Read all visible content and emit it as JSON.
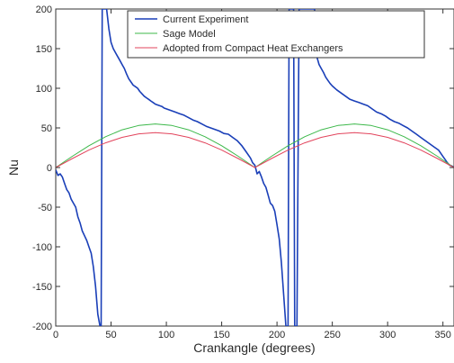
{
  "chart_data": {
    "type": "line",
    "title": "",
    "xlabel": "Crankangle (degrees)",
    "ylabel": "Nu",
    "xlim": [
      0,
      360
    ],
    "ylim": [
      -200,
      200
    ],
    "x_ticks": [
      0,
      50,
      100,
      150,
      200,
      250,
      300,
      350
    ],
    "y_ticks": [
      200,
      150,
      100,
      50,
      0,
      -50,
      -100,
      -150,
      -200
    ],
    "grid": false,
    "legend_position": "top",
    "series": [
      {
        "name": "Current Experiment",
        "color": "#1a3fb8",
        "x": [
          0,
          2,
          4,
          6,
          8,
          10,
          12,
          14,
          16,
          18,
          20,
          22,
          24,
          26,
          28,
          30,
          32,
          34,
          36,
          38,
          40,
          41,
          42,
          43,
          44,
          45,
          46,
          48,
          50,
          52,
          54,
          56,
          58,
          60,
          62,
          64,
          66,
          68,
          70,
          72,
          74,
          76,
          78,
          80,
          82,
          84,
          86,
          88,
          90,
          92,
          94,
          96,
          98,
          100,
          104,
          108,
          112,
          116,
          120,
          124,
          128,
          132,
          136,
          140,
          144,
          148,
          152,
          156,
          160,
          164,
          168,
          172,
          176,
          178,
          180,
          182,
          184,
          186,
          188,
          190,
          192,
          194,
          196,
          198,
          200,
          202,
          204,
          206,
          208,
          210,
          211,
          212,
          213,
          214,
          215,
          216,
          217,
          218,
          220,
          222,
          224,
          226,
          228,
          230,
          232,
          234,
          236,
          238,
          240,
          242,
          244,
          246,
          248,
          250,
          254,
          258,
          262,
          266,
          270,
          274,
          278,
          282,
          286,
          290,
          294,
          298,
          302,
          306,
          310,
          314,
          318,
          322,
          326,
          330,
          334,
          338,
          342,
          346,
          350,
          352,
          354,
          356,
          358,
          360
        ],
        "y": [
          -3,
          -10,
          -8,
          -12,
          -20,
          -28,
          -32,
          -40,
          -45,
          -50,
          -62,
          -70,
          -80,
          -86,
          -92,
          -100,
          -108,
          -125,
          -150,
          -185,
          -200,
          -200,
          200,
          200,
          200,
          200,
          200,
          175,
          158,
          150,
          145,
          140,
          135,
          130,
          125,
          118,
          112,
          108,
          104,
          102,
          100,
          96,
          93,
          90,
          88,
          86,
          84,
          82,
          80,
          79,
          78,
          77,
          75,
          74,
          72,
          70,
          68,
          66,
          63,
          60,
          58,
          55,
          52,
          50,
          48,
          46,
          43,
          42,
          38,
          34,
          28,
          20,
          12,
          6,
          3,
          -8,
          -5,
          -12,
          -20,
          -25,
          -35,
          -45,
          -48,
          -55,
          -72,
          -90,
          -120,
          -160,
          -200,
          -200,
          200,
          200,
          200,
          200,
          200,
          -200,
          -200,
          -200,
          200,
          200,
          200,
          200,
          200,
          200,
          200,
          200,
          140,
          130,
          125,
          120,
          114,
          110,
          106,
          103,
          98,
          94,
          90,
          86,
          84,
          82,
          80,
          78,
          74,
          70,
          68,
          65,
          61,
          58,
          56,
          53,
          50,
          46,
          42,
          38,
          34,
          30,
          26,
          22,
          14,
          10,
          6,
          3,
          2,
          0
        ]
      },
      {
        "name": "Sage Model",
        "color": "#3cb84a",
        "x": [
          0,
          15,
          30,
          45,
          60,
          75,
          90,
          105,
          120,
          135,
          150,
          165,
          180,
          195,
          210,
          225,
          240,
          255,
          270,
          285,
          300,
          315,
          330,
          345,
          360
        ],
        "y": [
          0,
          14.2,
          27.5,
          38.9,
          47.6,
          53.1,
          55,
          53.1,
          47.6,
          38.9,
          27.5,
          14.2,
          0,
          14.2,
          27.5,
          38.9,
          47.6,
          53.1,
          55,
          53.1,
          47.6,
          38.9,
          27.5,
          14.2,
          0
        ]
      },
      {
        "name": "Adopted from Compact Heat Exchangers",
        "color": "#e2445c",
        "x": [
          0,
          15,
          30,
          45,
          60,
          75,
          90,
          105,
          120,
          135,
          150,
          165,
          180,
          195,
          210,
          225,
          240,
          255,
          270,
          285,
          300,
          315,
          330,
          345,
          360
        ],
        "y": [
          0,
          11.4,
          22,
          31.1,
          38.1,
          42.5,
          44,
          42.5,
          38.1,
          31.1,
          22,
          11.4,
          0,
          11.4,
          22,
          31.1,
          38.1,
          42.5,
          44,
          42.5,
          38.1,
          31.1,
          22,
          11.4,
          0
        ]
      }
    ]
  }
}
